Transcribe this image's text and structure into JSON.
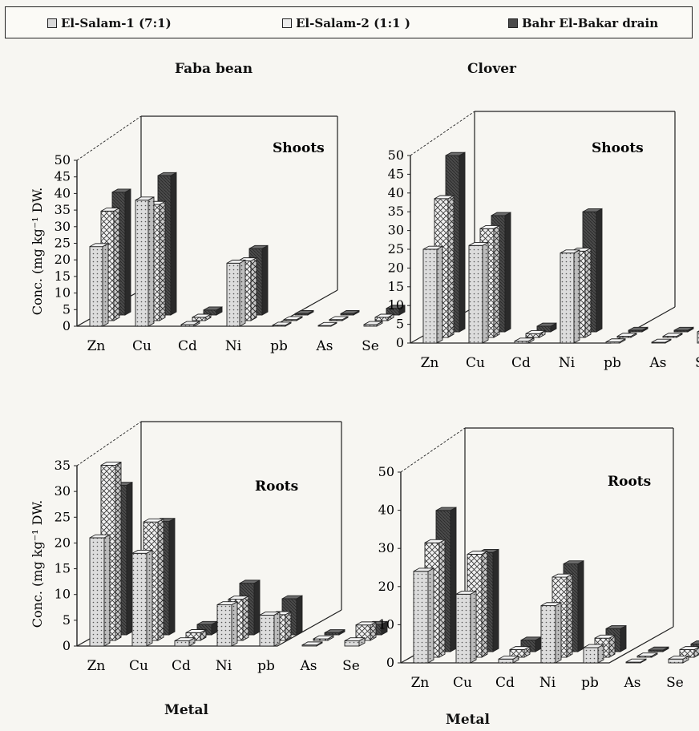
{
  "legend": [
    {
      "label": "El-Salam-1 (7:1)",
      "pattern": "dots"
    },
    {
      "label": "El-Salam-2 (1:1 )",
      "pattern": "cross"
    },
    {
      "label": "Bahr El-Bakar drain",
      "pattern": "dark"
    }
  ],
  "crop_titles": {
    "left": "Faba bean",
    "right": "Clover"
  },
  "colors": {
    "dots": "#d8d8d8",
    "cross": "#ececec",
    "dark": "#4a4a4a",
    "line": "#222222"
  },
  "chart_data": [
    {
      "type": "bar",
      "title": "Shoots",
      "crop": "Faba bean",
      "ylabel": "Conc. (mg kg⁻¹ DW.",
      "xlabel": "",
      "categories": [
        "Zn",
        "Cu",
        "Cd",
        "Ni",
        "pb",
        "As",
        "Se"
      ],
      "ylim": [
        0,
        50
      ],
      "yticks": [
        0,
        5,
        10,
        15,
        20,
        25,
        30,
        35,
        40,
        45,
        50
      ],
      "series": [
        {
          "name": "El-Salam-1 (7:1)",
          "values": [
            24,
            38,
            0.5,
            19,
            0.3,
            0.2,
            0.5
          ]
        },
        {
          "name": "El-Salam-2 (1:1 )",
          "values": [
            33,
            35,
            1,
            18,
            0.3,
            0.3,
            1
          ]
        },
        {
          "name": "Bahr El-Bakar drain",
          "values": [
            37,
            42,
            1.5,
            20,
            0.4,
            0.4,
            2
          ]
        }
      ]
    },
    {
      "type": "bar",
      "title": "Shoots",
      "crop": "Clover",
      "ylabel": "",
      "xlabel": "",
      "categories": [
        "Zn",
        "Cu",
        "Cd",
        "Ni",
        "pb",
        "As",
        "Se"
      ],
      "ylim": [
        0,
        50
      ],
      "yticks": [
        0,
        5,
        10,
        15,
        20,
        25,
        30,
        35,
        40,
        45,
        50
      ],
      "series": [
        {
          "name": "El-Salam-1 (7:1)",
          "values": [
            25,
            26,
            0.5,
            24,
            0.3,
            0.2,
            3
          ]
        },
        {
          "name": "El-Salam-2 (1:1 )",
          "values": [
            37,
            29,
            1,
            23,
            0.3,
            0.3,
            2
          ]
        },
        {
          "name": "Bahr El-Bakar drain",
          "values": [
            47,
            31,
            1.5,
            32,
            0.4,
            0.4,
            2
          ]
        }
      ]
    },
    {
      "type": "bar",
      "title": "Roots",
      "crop": "Faba bean",
      "ylabel": "Conc. (mg kg⁻¹ DW.",
      "xlabel": "Metal",
      "categories": [
        "Zn",
        "Cu",
        "Cd",
        "Ni",
        "pb",
        "As",
        "Se"
      ],
      "ylim": [
        0,
        35
      ],
      "yticks": [
        0,
        5,
        10,
        15,
        20,
        25,
        30,
        35
      ],
      "series": [
        {
          "name": "El-Salam-1 (7:1)",
          "values": [
            21,
            18,
            1,
            8,
            6,
            0.2,
            1
          ]
        },
        {
          "name": "El-Salam-2 (1:1 )",
          "values": [
            34,
            23,
            1.5,
            8,
            5,
            0.3,
            3
          ]
        },
        {
          "name": "Bahr El-Bakar drain",
          "values": [
            29,
            22,
            2,
            10,
            7,
            0.4,
            2
          ]
        }
      ]
    },
    {
      "type": "bar",
      "title": "Roots",
      "crop": "Clover",
      "ylabel": "",
      "xlabel": "Metal",
      "categories": [
        "Zn",
        "Cu",
        "Cd",
        "Ni",
        "pb",
        "As",
        "Se"
      ],
      "ylim": [
        0,
        50
      ],
      "yticks": [
        0,
        10,
        20,
        30,
        40,
        50
      ],
      "series": [
        {
          "name": "El-Salam-1 (7:1)",
          "values": [
            24,
            18,
            1,
            15,
            4,
            0.2,
            1
          ]
        },
        {
          "name": "El-Salam-2 (1:1 )",
          "values": [
            30,
            27,
            2,
            21,
            5,
            0.3,
            2
          ]
        },
        {
          "name": "Bahr El-Bakar drain",
          "values": [
            37,
            26,
            3,
            23,
            6,
            0.4,
            2
          ]
        }
      ]
    }
  ]
}
